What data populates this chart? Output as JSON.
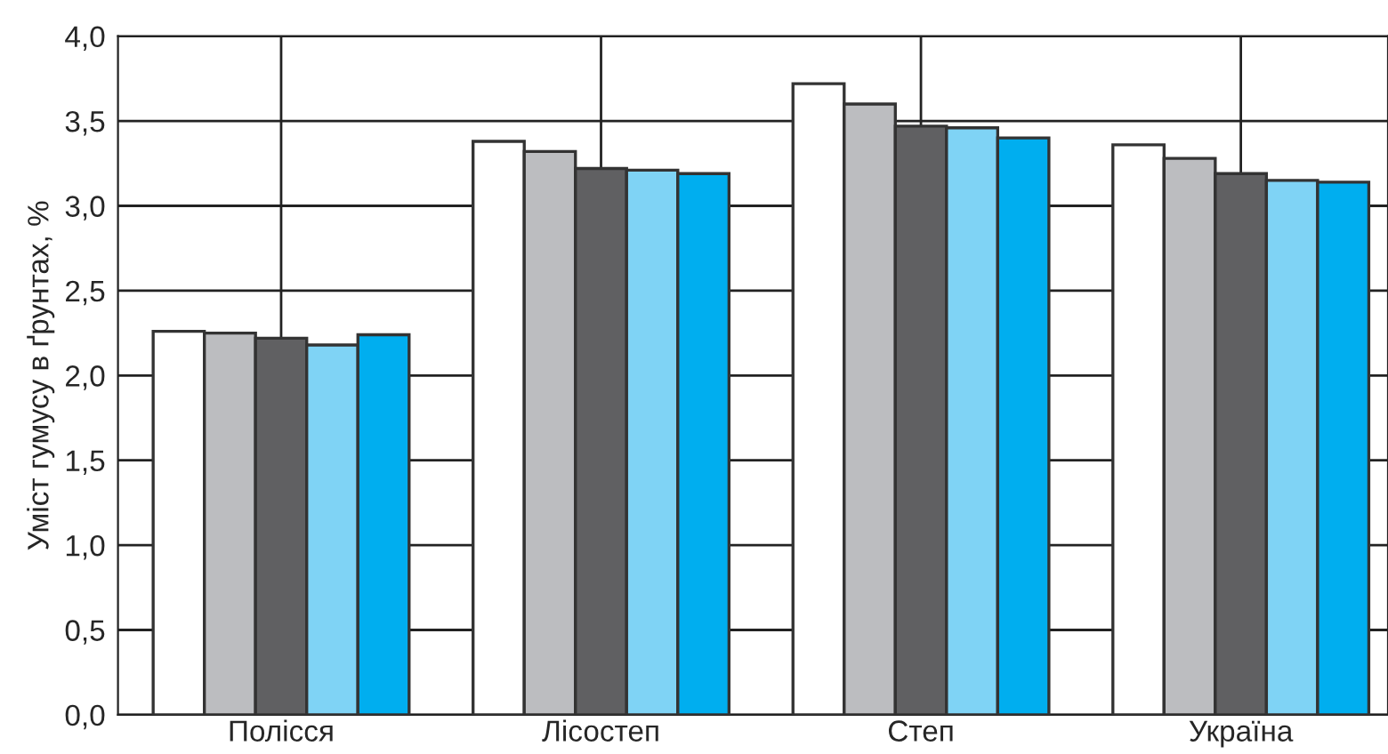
{
  "chart_data": {
    "type": "bar",
    "ylabel": "Уміст гумусу в ґрунтах, %",
    "categories": [
      "Полісся",
      "Лісостеп",
      "Степ",
      "Україна"
    ],
    "series": [
      {
        "color": "#ffffff",
        "values": [
          2.26,
          3.38,
          3.72,
          3.36
        ]
      },
      {
        "color": "#bcbdc0",
        "values": [
          2.25,
          3.32,
          3.6,
          3.28
        ]
      },
      {
        "color": "#606062",
        "values": [
          2.22,
          3.22,
          3.47,
          3.19
        ]
      },
      {
        "color": "#7fd3f5",
        "values": [
          2.18,
          3.21,
          3.46,
          3.15
        ]
      },
      {
        "color": "#00aeef",
        "values": [
          2.24,
          3.19,
          3.4,
          3.14
        ]
      }
    ],
    "ylim": [
      0,
      4
    ],
    "yticks": [
      {
        "value": 0,
        "label": "0,0"
      },
      {
        "value": 0.5,
        "label": "0,5"
      },
      {
        "value": 1,
        "label": "1,0"
      },
      {
        "value": 1.5,
        "label": "1,5"
      },
      {
        "value": 2,
        "label": "2,0"
      },
      {
        "value": 2.5,
        "label": "2,5"
      },
      {
        "value": 3,
        "label": "3,0"
      },
      {
        "value": 3.5,
        "label": "3,5"
      },
      {
        "value": 4,
        "label": "4,0"
      }
    ],
    "grid": true
  }
}
